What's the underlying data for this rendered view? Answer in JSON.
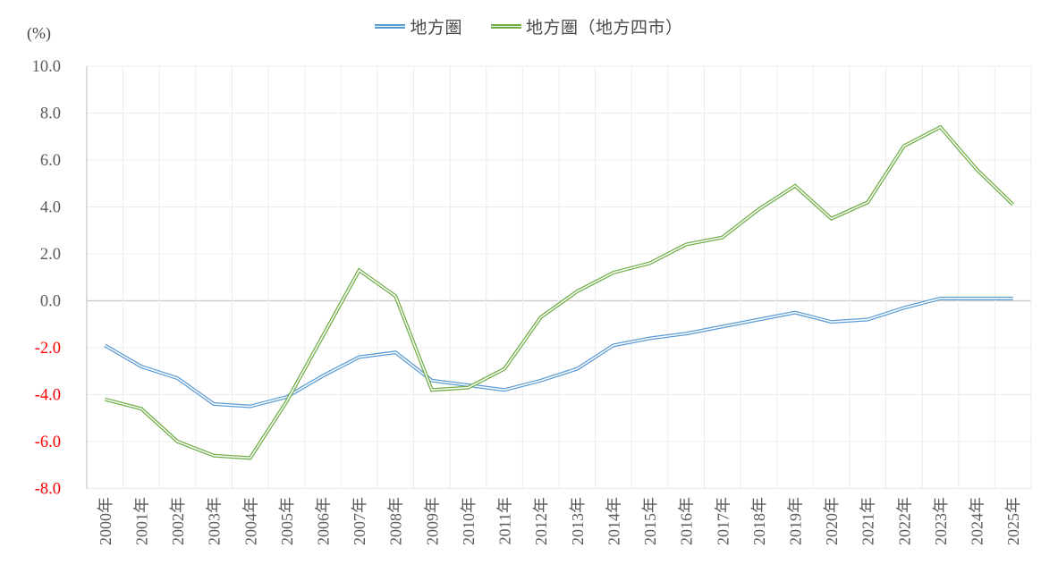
{
  "chart_data": {
    "type": "line",
    "unit_label": "(%)",
    "categories": [
      "2000年",
      "2001年",
      "2002年",
      "2003年",
      "2004年",
      "2005年",
      "2006年",
      "2007年",
      "2008年",
      "2009年",
      "2010年",
      "2011年",
      "2012年",
      "2013年",
      "2014年",
      "2015年",
      "2016年",
      "2017年",
      "2018年",
      "2019年",
      "2020年",
      "2021年",
      "2022年",
      "2023年",
      "2024年",
      "2025年"
    ],
    "series": [
      {
        "name": "地方圏",
        "color": "#5B9BD5",
        "values": [
          -1.9,
          -2.8,
          -3.3,
          -4.4,
          -4.5,
          -4.1,
          -3.2,
          -2.4,
          -2.2,
          -3.4,
          -3.6,
          -3.8,
          -3.4,
          -2.9,
          -1.9,
          -1.6,
          -1.4,
          -1.1,
          -0.8,
          -0.5,
          -0.9,
          -0.8,
          -0.3,
          0.1,
          0.1,
          0.1
        ]
      },
      {
        "name": "地方圏（地方四市）",
        "color": "#70AD47",
        "values": [
          -4.2,
          -4.6,
          -6.0,
          -6.6,
          -6.7,
          -4.3,
          -1.5,
          1.3,
          0.2,
          -3.8,
          -3.7,
          -2.9,
          -0.7,
          0.4,
          1.2,
          1.6,
          2.4,
          2.7,
          3.9,
          4.9,
          3.5,
          4.2,
          6.6,
          7.4,
          5.6,
          4.1
        ]
      }
    ],
    "ylim": [
      -8.0,
      10.0
    ],
    "ytick_step": 2.0,
    "yticks": [
      "10.0",
      "8.0",
      "6.0",
      "4.0",
      "2.0",
      "0.0",
      "-2.0",
      "-4.0",
      "-6.0",
      "-8.0"
    ],
    "grid": true,
    "legend_position": "top",
    "colors": {
      "grid_color": "#ECECEC",
      "axis_color": "#C9C9C9",
      "tick_label_color": "#595959",
      "negative_tick_label_color": "#FF0000",
      "legend_text_color": "#4A4A4A",
      "line_core_color": "#FFFFFF",
      "background": "#FFFFFF"
    }
  }
}
